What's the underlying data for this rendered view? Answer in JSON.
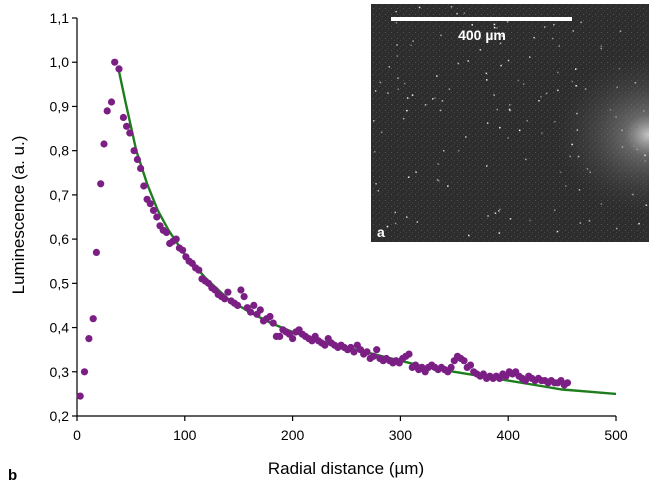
{
  "chart_data": {
    "type": "scatter",
    "xlabel": "Radial distance (µm)",
    "ylabel": "Luminescence (a. u.)",
    "xlim": [
      0,
      500
    ],
    "ylim": [
      0.2,
      1.1
    ],
    "x_ticks": [
      "0",
      "100",
      "200",
      "300",
      "400",
      "500"
    ],
    "y_ticks": [
      "0,2",
      "0,3",
      "0,4",
      "0,5",
      "0,6",
      "0,7",
      "0,8",
      "0,9",
      "1,0",
      "1,1"
    ],
    "grid": false,
    "panel_label": "b",
    "series": [
      {
        "kind": "points",
        "color": "#7b1f85",
        "points": [
          [
            3,
            0.245
          ],
          [
            7,
            0.3
          ],
          [
            11,
            0.375
          ],
          [
            15,
            0.42
          ],
          [
            18,
            0.57
          ],
          [
            22,
            0.725
          ],
          [
            25,
            0.815
          ],
          [
            28,
            0.89
          ],
          [
            32,
            0.91
          ],
          [
            35,
            1.0
          ],
          [
            39,
            0.985
          ],
          [
            43,
            0.875
          ],
          [
            46,
            0.855
          ],
          [
            49,
            0.84
          ],
          [
            53,
            0.8
          ],
          [
            56,
            0.78
          ],
          [
            59,
            0.76
          ],
          [
            62,
            0.72
          ],
          [
            65,
            0.69
          ],
          [
            68,
            0.68
          ],
          [
            71,
            0.665
          ],
          [
            74,
            0.65
          ],
          [
            77,
            0.63
          ],
          [
            80,
            0.62
          ],
          [
            83,
            0.615
          ],
          [
            86,
            0.59
          ],
          [
            89,
            0.595
          ],
          [
            92,
            0.6
          ],
          [
            95,
            0.58
          ],
          [
            98,
            0.575
          ],
          [
            101,
            0.56
          ],
          [
            104,
            0.55
          ],
          [
            107,
            0.545
          ],
          [
            110,
            0.535
          ],
          [
            113,
            0.53
          ],
          [
            116,
            0.51
          ],
          [
            119,
            0.505
          ],
          [
            122,
            0.5
          ],
          [
            125,
            0.49
          ],
          [
            128,
            0.485
          ],
          [
            131,
            0.475
          ],
          [
            134,
            0.47
          ],
          [
            137,
            0.465
          ],
          [
            140,
            0.48
          ],
          [
            143,
            0.46
          ],
          [
            146,
            0.455
          ],
          [
            149,
            0.45
          ],
          [
            152,
            0.485
          ],
          [
            155,
            0.47
          ],
          [
            158,
            0.445
          ],
          [
            161,
            0.435
          ],
          [
            164,
            0.45
          ],
          [
            167,
            0.43
          ],
          [
            170,
            0.44
          ],
          [
            173,
            0.415
          ],
          [
            176,
            0.42
          ],
          [
            179,
            0.425
          ],
          [
            182,
            0.41
          ],
          [
            185,
            0.38
          ],
          [
            188,
            0.38
          ],
          [
            191,
            0.395
          ],
          [
            194,
            0.39
          ],
          [
            197,
            0.385
          ],
          [
            200,
            0.375
          ],
          [
            203,
            0.39
          ],
          [
            206,
            0.395
          ],
          [
            209,
            0.385
          ],
          [
            212,
            0.38
          ],
          [
            215,
            0.375
          ],
          [
            218,
            0.37
          ],
          [
            221,
            0.38
          ],
          [
            224,
            0.37
          ],
          [
            227,
            0.365
          ],
          [
            230,
            0.36
          ],
          [
            233,
            0.375
          ],
          [
            236,
            0.365
          ],
          [
            239,
            0.36
          ],
          [
            242,
            0.355
          ],
          [
            245,
            0.36
          ],
          [
            248,
            0.355
          ],
          [
            251,
            0.35
          ],
          [
            254,
            0.355
          ],
          [
            257,
            0.345
          ],
          [
            260,
            0.36
          ],
          [
            263,
            0.35
          ],
          [
            266,
            0.34
          ],
          [
            269,
            0.345
          ],
          [
            272,
            0.33
          ],
          [
            275,
            0.335
          ],
          [
            278,
            0.35
          ],
          [
            281,
            0.33
          ],
          [
            284,
            0.325
          ],
          [
            287,
            0.33
          ],
          [
            290,
            0.325
          ],
          [
            293,
            0.32
          ],
          [
            296,
            0.325
          ],
          [
            299,
            0.32
          ],
          [
            302,
            0.33
          ],
          [
            305,
            0.335
          ],
          [
            308,
            0.34
          ],
          [
            311,
            0.31
          ],
          [
            314,
            0.315
          ],
          [
            317,
            0.305
          ],
          [
            320,
            0.31
          ],
          [
            323,
            0.3
          ],
          [
            326,
            0.31
          ],
          [
            329,
            0.315
          ],
          [
            332,
            0.31
          ],
          [
            335,
            0.305
          ],
          [
            338,
            0.31
          ],
          [
            341,
            0.305
          ],
          [
            344,
            0.3
          ],
          [
            347,
            0.31
          ],
          [
            350,
            0.325
          ],
          [
            353,
            0.335
          ],
          [
            356,
            0.33
          ],
          [
            359,
            0.325
          ],
          [
            362,
            0.31
          ],
          [
            365,
            0.315
          ],
          [
            368,
            0.3
          ],
          [
            371,
            0.295
          ],
          [
            374,
            0.29
          ],
          [
            377,
            0.295
          ],
          [
            380,
            0.285
          ],
          [
            383,
            0.29
          ],
          [
            386,
            0.285
          ],
          [
            389,
            0.29
          ],
          [
            392,
            0.285
          ],
          [
            395,
            0.295
          ],
          [
            398,
            0.29
          ],
          [
            401,
            0.3
          ],
          [
            404,
            0.295
          ],
          [
            407,
            0.3
          ],
          [
            410,
            0.29
          ],
          [
            413,
            0.285
          ],
          [
            416,
            0.28
          ],
          [
            419,
            0.29
          ],
          [
            422,
            0.285
          ],
          [
            425,
            0.28
          ],
          [
            428,
            0.285
          ],
          [
            431,
            0.28
          ],
          [
            434,
            0.28
          ],
          [
            437,
            0.275
          ],
          [
            440,
            0.28
          ],
          [
            443,
            0.275
          ],
          [
            446,
            0.275
          ],
          [
            449,
            0.28
          ],
          [
            452,
            0.27
          ],
          [
            455,
            0.275
          ]
        ]
      },
      {
        "kind": "fit-curve",
        "color": "#1e7d1e",
        "points": [
          [
            38,
            0.99
          ],
          [
            45,
            0.91
          ],
          [
            55,
            0.8
          ],
          [
            65,
            0.725
          ],
          [
            75,
            0.665
          ],
          [
            85,
            0.62
          ],
          [
            100,
            0.565
          ],
          [
            120,
            0.51
          ],
          [
            140,
            0.465
          ],
          [
            160,
            0.435
          ],
          [
            180,
            0.41
          ],
          [
            200,
            0.39
          ],
          [
            225,
            0.37
          ],
          [
            250,
            0.355
          ],
          [
            275,
            0.34
          ],
          [
            300,
            0.325
          ],
          [
            325,
            0.31
          ],
          [
            350,
            0.3
          ],
          [
            375,
            0.29
          ],
          [
            400,
            0.28
          ],
          [
            425,
            0.27
          ],
          [
            450,
            0.26
          ],
          [
            475,
            0.255
          ],
          [
            500,
            0.25
          ]
        ]
      }
    ],
    "inset": {
      "panel_label": "a",
      "scale_bar_label": "400 µm",
      "background": "#2a2a2a"
    }
  }
}
